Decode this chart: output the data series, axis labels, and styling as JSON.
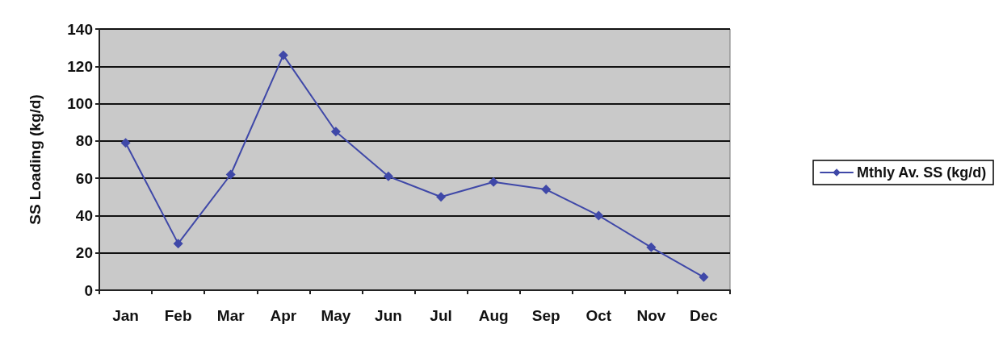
{
  "chart_data": {
    "type": "line",
    "ylabel": "SS Loading (kg/d)",
    "categories": [
      "Jan",
      "Feb",
      "Mar",
      "Apr",
      "May",
      "Jun",
      "Jul",
      "Aug",
      "Sep",
      "Oct",
      "Nov",
      "Dec"
    ],
    "series": [
      {
        "name": "Mthly Av. SS (kg/d)",
        "color": "#3f48a8",
        "values": [
          79,
          25,
          62,
          126,
          85,
          61,
          50,
          58,
          54,
          40,
          23,
          7
        ]
      }
    ],
    "ylim": [
      0,
      140
    ],
    "yticks": [
      0,
      20,
      40,
      60,
      80,
      100,
      120,
      140
    ],
    "grid": "y",
    "legend": "right",
    "marker": "diamond",
    "line_style": "solid"
  }
}
